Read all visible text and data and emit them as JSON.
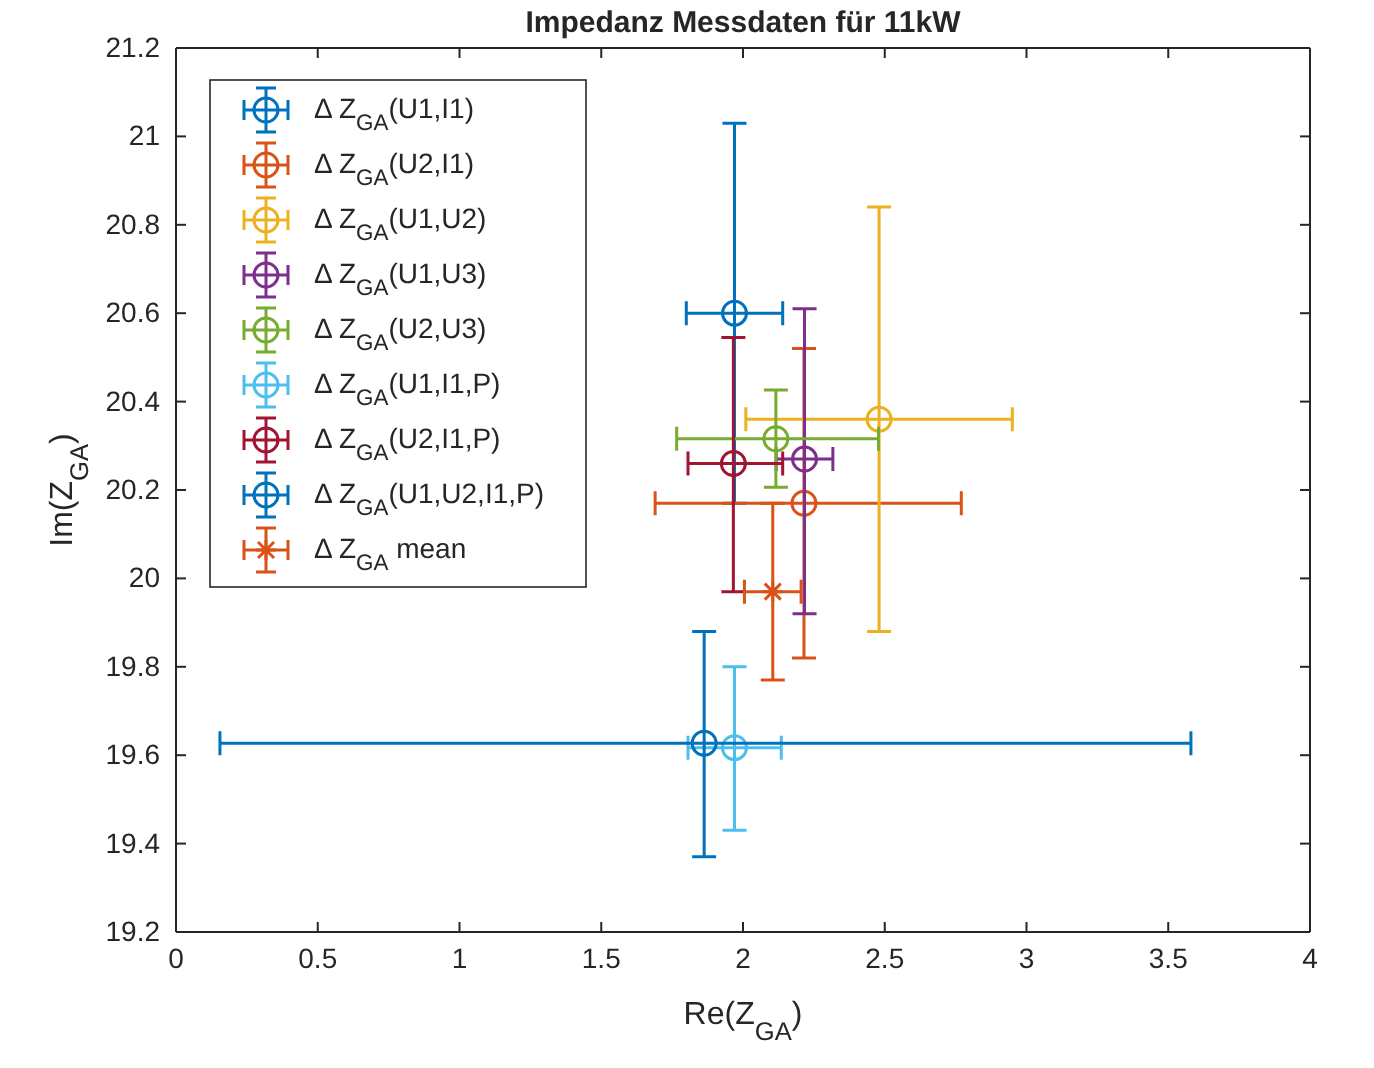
{
  "chart_data": {
    "type": "scatter",
    "title": "Impedanz Messdaten für 11kW",
    "xlabel": "Re(Z$_{GA}$)",
    "ylabel": "Im(Z$_{GA}$)",
    "xlim": [
      0,
      4
    ],
    "xticks": [
      0,
      0.5,
      1,
      1.5,
      2,
      2.5,
      3,
      3.5,
      4
    ],
    "ylim": [
      19.2,
      21.2
    ],
    "yticks": [
      19.2,
      19.4,
      19.6,
      19.8,
      20,
      20.2,
      20.4,
      20.6,
      20.8,
      21,
      21.2
    ],
    "grid": false,
    "legend": "top left",
    "marker": "circle",
    "series": [
      {
        "name": "Δ Z$_{GA}$(U1,I1)",
        "color": "#0072bd",
        "x": [
          1.97
        ],
        "values": [
          20.6
        ],
        "errors": [
          0.43
        ],
        "xerrors": [
          0.17
        ]
      },
      {
        "name": "Δ Z$_{GA}$(U2,I1)",
        "color": "#d95319",
        "x": [
          2.215
        ],
        "values": [
          20.17
        ],
        "errors": [
          0.35
        ],
        "xerrors": [
          [
            1.69,
            2.77
          ]
        ]
      },
      {
        "name": "Δ Z$_{GA}$(U1,U2)",
        "color": "#edb120",
        "x": [
          2.48
        ],
        "values": [
          20.36
        ],
        "errors": [
          0.48
        ],
        "xerrors": [
          0.47
        ]
      },
      {
        "name": "Δ Z$_{GA}$(U1,U3)",
        "color": "#7e2f8e",
        "x": [
          2.217
        ],
        "values": [
          20.27
        ],
        "errors": [
          [
            19.92,
            20.61
          ]
        ],
        "xerrors": [
          0.1
        ]
      },
      {
        "name": "Δ Z$_{GA}$(U2,U3)",
        "color": "#77ac30",
        "x": [
          2.116
        ],
        "values": [
          20.316
        ],
        "errors": [
          0.11
        ],
        "xerrors": [
          [
            1.766,
            2.478
          ]
        ]
      },
      {
        "name": "Δ Z$_{GA}$(U1,I1,P)",
        "color": "#4dbeee",
        "x": [
          1.97
        ],
        "values": [
          19.617
        ],
        "errors": [
          [
            19.43,
            19.8
          ]
        ],
        "xerrors": [
          [
            1.806,
            2.135
          ]
        ]
      },
      {
        "name": "Δ Z$_{GA}$(U2,I1,P)",
        "color": "#a2142f",
        "x": [
          1.966
        ],
        "values": [
          20.26
        ],
        "errors": [
          [
            19.97,
            20.545
          ]
        ],
        "xerrors": [
          [
            1.806,
            2.14
          ]
        ]
      },
      {
        "name": "Δ Z$_{GA}$(U1,U2,I1,P)",
        "color": "#0072bd",
        "x": [
          1.863
        ],
        "values": [
          19.627
        ],
        "errors": [
          [
            19.37,
            19.88
          ]
        ],
        "xerrors": [
          [
            0.155,
            3.58
          ]
        ]
      },
      {
        "name": "Δ Z$_{GA}$ mean",
        "color": "#d95319",
        "marker": "cross",
        "x": [
          2.105
        ],
        "values": [
          19.97
        ],
        "errors": [
          0.2
        ],
        "xerrors": [
          0.1
        ]
      }
    ]
  }
}
